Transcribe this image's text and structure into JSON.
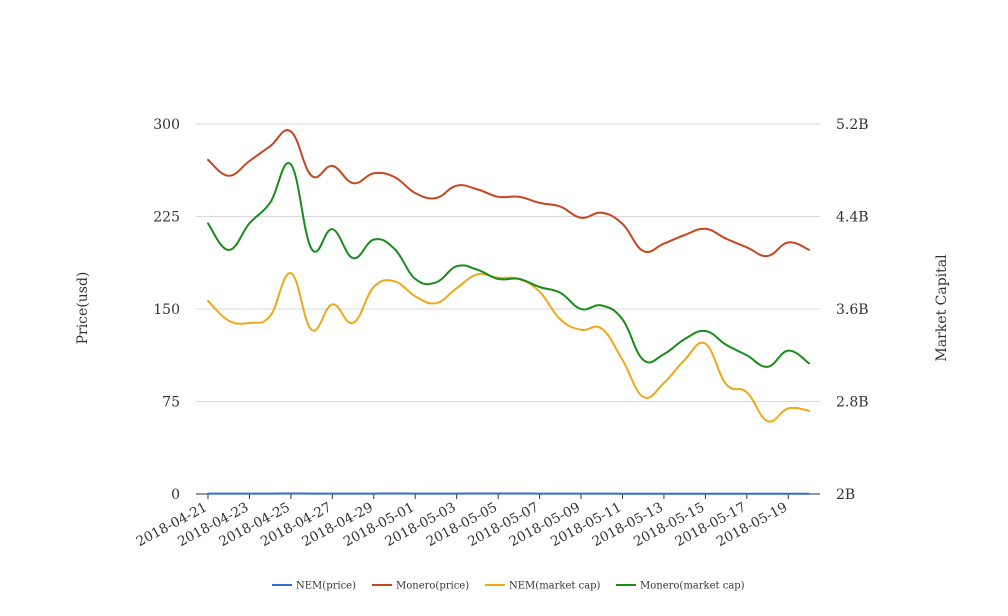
{
  "chart_data": {
    "type": "line",
    "x": [
      "2018-04-21",
      "2018-04-22",
      "2018-04-23",
      "2018-04-24",
      "2018-04-25",
      "2018-04-26",
      "2018-04-27",
      "2018-04-28",
      "2018-04-29",
      "2018-04-30",
      "2018-05-01",
      "2018-05-02",
      "2018-05-03",
      "2018-05-04",
      "2018-05-05",
      "2018-05-06",
      "2018-05-07",
      "2018-05-08",
      "2018-05-09",
      "2018-05-10",
      "2018-05-11",
      "2018-05-12",
      "2018-05-13",
      "2018-05-14",
      "2018-05-15",
      "2018-05-16",
      "2018-05-17",
      "2018-05-18",
      "2018-05-19",
      "2018-05-20"
    ],
    "x_tick_labels": [
      "2018-04-21",
      "2018-04-23",
      "2018-04-25",
      "2018-04-27",
      "2018-04-29",
      "2018-05-01",
      "2018-05-03",
      "2018-05-05",
      "2018-05-07",
      "2018-05-09",
      "2018-05-11",
      "2018-05-13",
      "2018-05-15",
      "2018-05-17",
      "2018-05-19"
    ],
    "left_axis": {
      "label": "Price(usd)",
      "ticks": [
        "0",
        "75",
        "150",
        "225",
        "300"
      ],
      "tick_values": [
        0,
        75,
        150,
        225,
        300
      ],
      "range": [
        0,
        300
      ]
    },
    "right_axis": {
      "label": "Market Capital",
      "ticks": [
        "2B",
        "2.8B",
        "3.6B",
        "4.4B",
        "5.2B"
      ],
      "tick_values": [
        2.0,
        2.8,
        3.6,
        4.4,
        5.2
      ],
      "range": [
        2.0,
        5.2
      ],
      "unit": "B"
    },
    "grid": true,
    "legend_position": "bottom",
    "series": [
      {
        "name": "NEM(price)",
        "axis": "left",
        "color": "#2f6fc6",
        "values": [
          0.33,
          0.32,
          0.33,
          0.34,
          0.38,
          0.29,
          0.33,
          0.3,
          0.36,
          0.37,
          0.34,
          0.33,
          0.36,
          0.38,
          0.37,
          0.37,
          0.36,
          0.32,
          0.29,
          0.29,
          0.25,
          0.19,
          0.21,
          0.25,
          0.26,
          0.21,
          0.19,
          0.15,
          0.16,
          0.16
        ]
      },
      {
        "name": "Monero(price)",
        "axis": "left",
        "color": "#c8461f",
        "values": [
          271,
          258,
          270,
          282,
          294,
          258,
          266,
          252,
          260,
          257,
          244,
          240,
          250,
          247,
          241,
          241,
          236,
          233,
          224,
          228,
          219,
          197,
          203,
          210,
          215,
          207,
          200,
          193,
          204,
          198
        ]
      },
      {
        "name": "NEM(market cap)",
        "axis": "right",
        "color": "#f0a818",
        "values": [
          3.67,
          3.5,
          3.48,
          3.54,
          3.91,
          3.42,
          3.64,
          3.48,
          3.79,
          3.84,
          3.71,
          3.65,
          3.78,
          3.9,
          3.87,
          3.86,
          3.75,
          3.51,
          3.42,
          3.43,
          3.16,
          2.84,
          2.96,
          3.16,
          3.3,
          2.95,
          2.88,
          2.63,
          2.74,
          2.72
        ]
      },
      {
        "name": "Monero(market cap)",
        "axis": "right",
        "color": "#1a8c1a",
        "values": [
          4.34,
          4.11,
          4.34,
          4.52,
          4.85,
          4.12,
          4.29,
          4.04,
          4.2,
          4.12,
          3.86,
          3.83,
          3.97,
          3.94,
          3.86,
          3.86,
          3.79,
          3.74,
          3.6,
          3.63,
          3.51,
          3.16,
          3.21,
          3.34,
          3.41,
          3.29,
          3.2,
          3.1,
          3.24,
          3.13
        ]
      }
    ]
  }
}
